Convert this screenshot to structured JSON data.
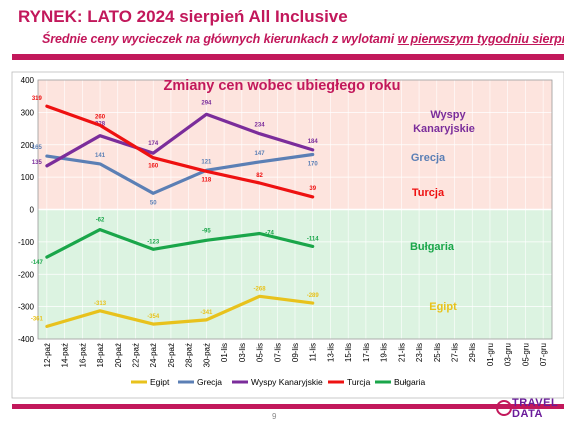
{
  "header": {
    "title": "RYNEK: LATO 2024 sierpień All Inclusive",
    "subtitle_part1": "Średnie ceny wycieczek na głównych kierunkach z wylotami ",
    "subtitle_part2": "w pierwszym tygodniu sierpnia"
  },
  "footer": {
    "page_number": "9",
    "logo_line1": "TRAVEL",
    "logo_line2": "DATA"
  },
  "chart_data": {
    "type": "line",
    "title": "Zmiany cen wobec ubiegłego roku",
    "ylim": [
      -400,
      400
    ],
    "yticks": [
      400,
      300,
      200,
      100,
      0,
      -100,
      -200,
      -300,
      -400
    ],
    "categories": [
      "12-paź",
      "14-paź",
      "16-paź",
      "18-paź",
      "20-paź",
      "22-paź",
      "24-paź",
      "26-paź",
      "28-paź",
      "30-paź",
      "01-lis",
      "03-lis",
      "05-lis",
      "07-lis",
      "09-lis",
      "11-lis",
      "13-lis",
      "15-lis",
      "17-lis",
      "19-lis",
      "21-lis",
      "23-lis",
      "25-lis",
      "27-lis",
      "29-lis",
      "01-gru",
      "03-gru",
      "05-gru",
      "07-gru"
    ],
    "grid": true,
    "legend_position": "bottom",
    "series": [
      {
        "name": "Egipt",
        "label": "Egipt",
        "color": "#e8c21c",
        "points": [
          [
            0,
            -361
          ],
          [
            3,
            -313
          ],
          [
            6,
            -354
          ],
          [
            9,
            -341
          ],
          [
            12,
            -268
          ],
          [
            15,
            -289
          ]
        ],
        "labels": [
          "-361",
          "-313",
          "-354",
          "-341",
          "-268",
          "-289"
        ]
      },
      {
        "name": "Grecja",
        "label": "Grecja",
        "color": "#5b7fb5",
        "points": [
          [
            0,
            165
          ],
          [
            3,
            141
          ],
          [
            6,
            50
          ],
          [
            9,
            121
          ],
          [
            12,
            147
          ],
          [
            15,
            170
          ]
        ],
        "labels": [
          "165",
          "141",
          "50",
          "121",
          "147",
          "170"
        ]
      },
      {
        "name": "Wyspy Kanaryjskie",
        "label_line1": "Wyspy",
        "label_line2": "Kanaryjskie",
        "color": "#7b2d9b",
        "points": [
          [
            0,
            135
          ],
          [
            3,
            228
          ],
          [
            6,
            174
          ],
          [
            9,
            294
          ],
          [
            12,
            234
          ],
          [
            15,
            184
          ]
        ],
        "labels": [
          "135",
          "228",
          "174",
          "294",
          "234",
          "184"
        ]
      },
      {
        "name": "Turcja",
        "label": "Turcja",
        "color": "#ee1111",
        "points": [
          [
            0,
            319
          ],
          [
            3,
            260
          ],
          [
            6,
            160
          ],
          [
            9,
            118
          ],
          [
            12,
            82
          ],
          [
            15,
            39
          ]
        ],
        "labels": [
          "319",
          "260",
          "160",
          "118",
          "82",
          "39"
        ]
      },
      {
        "name": "Bułgaria",
        "label": "Bułgaria",
        "color": "#1aa64a",
        "points": [
          [
            0,
            -147
          ],
          [
            3,
            -62
          ],
          [
            6,
            -123
          ],
          [
            9,
            -95
          ],
          [
            12,
            -74
          ],
          [
            15,
            -114
          ]
        ],
        "labels": [
          "-147",
          "-62",
          "-123",
          "-95",
          "-74",
          "-114"
        ]
      }
    ]
  }
}
